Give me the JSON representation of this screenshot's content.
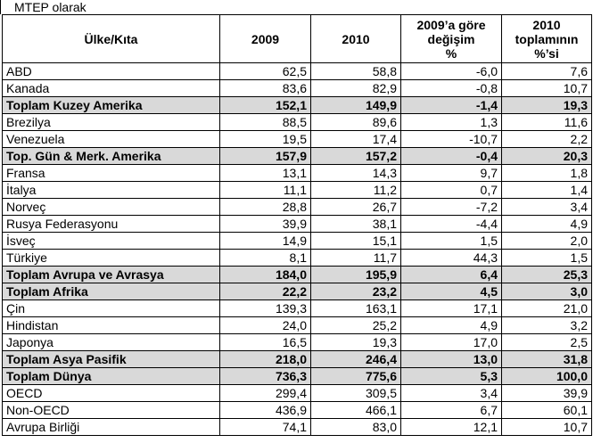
{
  "caption": "MTEP olarak",
  "headers": {
    "country": "Ülke/Kıta",
    "y2009": "2009",
    "y2010": "2010",
    "change": [
      "2009’a göre",
      "değişim",
      "%"
    ],
    "share": [
      "2010",
      "toplamının",
      "%’si"
    ]
  },
  "rows": [
    {
      "name": "ABD",
      "v2009": "62,5",
      "v2010": "58,8",
      "change": "-6,0",
      "share": "7,6",
      "total": false
    },
    {
      "name": "Kanada",
      "v2009": "83,6",
      "v2010": "82,9",
      "change": "-0,8",
      "share": "10,7",
      "total": false
    },
    {
      "name": "Toplam Kuzey Amerika",
      "v2009": "152,1",
      "v2010": "149,9",
      "change": "-1,4",
      "share": "19,3",
      "total": true
    },
    {
      "name": "Brezilya",
      "v2009": "88,5",
      "v2010": "89,6",
      "change": "1,3",
      "share": "11,6",
      "total": false
    },
    {
      "name": "Venezuela",
      "v2009": "19,5",
      "v2010": "17,4",
      "change": "-10,7",
      "share": "2,2",
      "total": false
    },
    {
      "name": "Top. Gün & Merk. Amerika",
      "v2009": "157,9",
      "v2010": "157,2",
      "change": "-0,4",
      "share": "20,3",
      "total": true
    },
    {
      "name": "Fransa",
      "v2009": "13,1",
      "v2010": "14,3",
      "change": "9,7",
      "share": "1,8",
      "total": false
    },
    {
      "name": "İtalya",
      "v2009": "11,1",
      "v2010": "11,2",
      "change": "0,7",
      "share": "1,4",
      "total": false
    },
    {
      "name": "Norveç",
      "v2009": "28,8",
      "v2010": "26,7",
      "change": "-7,2",
      "share": "3,4",
      "total": false
    },
    {
      "name": "Rusya Federasyonu",
      "v2009": "39,9",
      "v2010": "38,1",
      "change": "-4,4",
      "share": "4,9",
      "total": false
    },
    {
      "name": "İsveç",
      "v2009": "14,9",
      "v2010": "15,1",
      "change": "1,5",
      "share": "2,0",
      "total": false
    },
    {
      "name": "Türkiye",
      "v2009": "8,1",
      "v2010": "11,7",
      "change": "44,3",
      "share": "1,5",
      "total": false
    },
    {
      "name": "Toplam Avrupa ve Avrasya",
      "v2009": "184,0",
      "v2010": "195,9",
      "change": "6,4",
      "share": "25,3",
      "total": true
    },
    {
      "name": "Toplam Afrika",
      "v2009": "22,2",
      "v2010": "23,2",
      "change": "4,5",
      "share": "3,0",
      "total": true
    },
    {
      "name": "Çin",
      "v2009": "139,3",
      "v2010": "163,1",
      "change": "17,1",
      "share": "21,0",
      "total": false
    },
    {
      "name": "Hindistan",
      "v2009": "24,0",
      "v2010": "25,2",
      "change": "4,9",
      "share": "3,2",
      "total": false
    },
    {
      "name": "Japonya",
      "v2009": "16,5",
      "v2010": "19,3",
      "change": "17,0",
      "share": "2,5",
      "total": false
    },
    {
      "name": "Toplam Asya Pasifik",
      "v2009": "218,0",
      "v2010": "246,4",
      "change": "13,0",
      "share": "31,8",
      "total": true
    },
    {
      "name": "Toplam Dünya",
      "v2009": "736,3",
      "v2010": "775,6",
      "change": "5,3",
      "share": "100,0",
      "total": true
    },
    {
      "name": "OECD",
      "v2009": "299,4",
      "v2010": "309,5",
      "change": "3,4",
      "share": "39,9",
      "total": false
    },
    {
      "name": "Non-OECD",
      "v2009": "436,9",
      "v2010": "466,1",
      "change": "6,7",
      "share": "60,1",
      "total": false
    },
    {
      "name": "Avrupa Birliği",
      "v2009": "74,1",
      "v2010": "83,0",
      "change": "12,1",
      "share": "10,7",
      "total": false
    }
  ]
}
